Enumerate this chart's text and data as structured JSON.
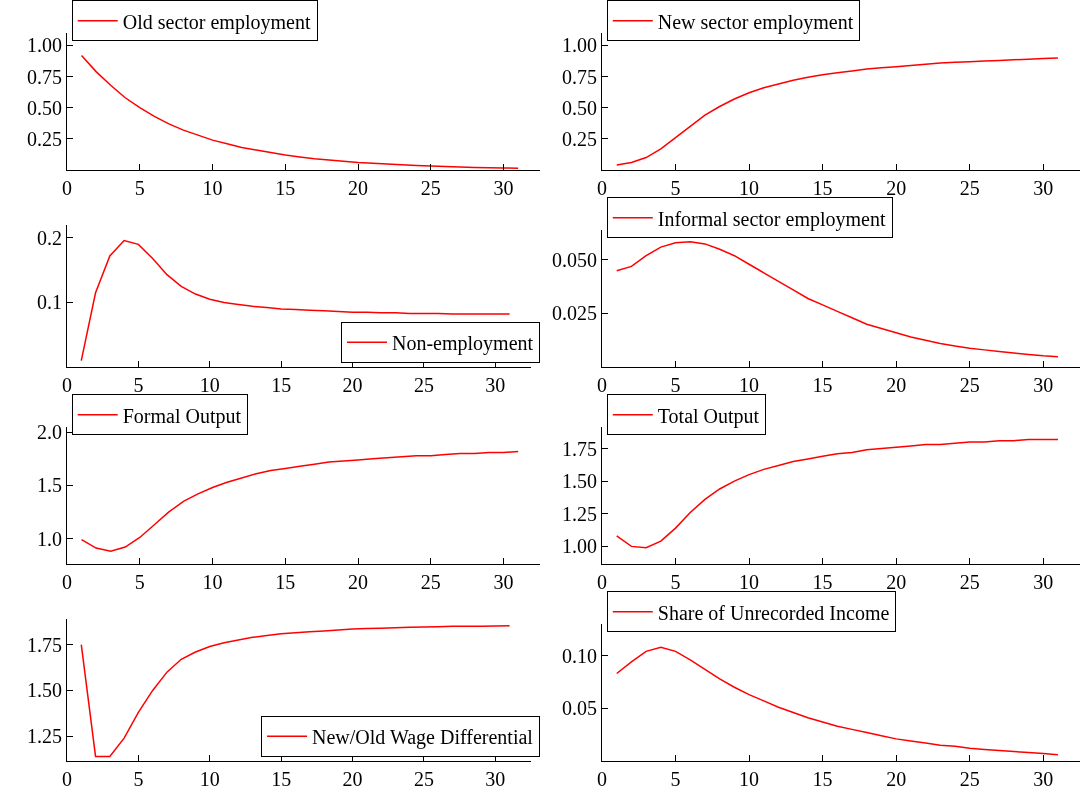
{
  "chart_data": [
    {
      "type": "line",
      "x": [
        1,
        2,
        3,
        4,
        5,
        6,
        7,
        8,
        9,
        10,
        11,
        12,
        13,
        14,
        15,
        16,
        17,
        18,
        19,
        20,
        21,
        22,
        23,
        24,
        25,
        26,
        27,
        28,
        29,
        30,
        31
      ],
      "xlim": [
        0,
        32.5
      ],
      "xticks": [
        0,
        5,
        10,
        15,
        20,
        25,
        30
      ],
      "ylim": [
        0,
        1.1
      ],
      "yticks": [
        {
          "value": 0.25,
          "label": "0.25"
        },
        {
          "value": 0.5,
          "label": "0.50"
        },
        {
          "value": 0.75,
          "label": "0.75"
        },
        {
          "value": 1,
          "label": "1.00"
        }
      ],
      "legend": "top left",
      "series": [
        {
          "name": "Old sector employment",
          "color": "#ff0000",
          "values": [
            0.92,
            0.79,
            0.68,
            0.58,
            0.5,
            0.43,
            0.37,
            0.32,
            0.28,
            0.24,
            0.21,
            0.18,
            0.16,
            0.14,
            0.12,
            0.105,
            0.09,
            0.08,
            0.07,
            0.06,
            0.055,
            0.048,
            0.042,
            0.036,
            0.032,
            0.028,
            0.024,
            0.021,
            0.018,
            0.016,
            0.014
          ]
        }
      ]
    },
    {
      "type": "line",
      "x": [
        1,
        2,
        3,
        4,
        5,
        6,
        7,
        8,
        9,
        10,
        11,
        12,
        13,
        14,
        15,
        16,
        17,
        18,
        19,
        20,
        21,
        22,
        23,
        24,
        25,
        26,
        27,
        28,
        29,
        30,
        31
      ],
      "xlim": [
        0,
        32.5
      ],
      "xticks": [
        0,
        5,
        10,
        15,
        20,
        25,
        30
      ],
      "ylim": [
        0,
        1.1
      ],
      "yticks": [
        {
          "value": 0.25,
          "label": "0.25"
        },
        {
          "value": 0.5,
          "label": "0.50"
        },
        {
          "value": 0.75,
          "label": "0.75"
        },
        {
          "value": 1,
          "label": "1.00"
        }
      ],
      "legend": "top left",
      "series": [
        {
          "name": "New sector employment",
          "color": "#ff0000",
          "values": [
            0.04,
            0.06,
            0.1,
            0.17,
            0.26,
            0.35,
            0.44,
            0.51,
            0.57,
            0.62,
            0.66,
            0.69,
            0.72,
            0.745,
            0.765,
            0.78,
            0.795,
            0.81,
            0.82,
            0.83,
            0.84,
            0.85,
            0.86,
            0.865,
            0.87,
            0.875,
            0.88,
            0.885,
            0.89,
            0.895,
            0.9
          ]
        }
      ]
    },
    {
      "type": "line",
      "x": [
        1,
        2,
        3,
        4,
        5,
        6,
        7,
        8,
        9,
        10,
        11,
        12,
        13,
        14,
        15,
        16,
        17,
        18,
        19,
        20,
        21,
        22,
        23,
        24,
        25,
        26,
        27,
        28,
        29,
        30,
        31
      ],
      "xlim": [
        0,
        32.5
      ],
      "xticks": [
        0,
        5,
        10,
        15,
        20,
        25,
        30
      ],
      "ylim": [
        0,
        0.22
      ],
      "yticks": [
        0.1,
        0.2
      ],
      "legend": "bottom right",
      "series": [
        {
          "name": "Non-employment",
          "color": "#ff0000",
          "values": [
            0.01,
            0.115,
            0.172,
            0.196,
            0.19,
            0.168,
            0.143,
            0.125,
            0.113,
            0.105,
            0.1,
            0.097,
            0.094,
            0.092,
            0.09,
            0.089,
            0.088,
            0.087,
            0.086,
            0.085,
            0.085,
            0.084,
            0.084,
            0.083,
            0.083,
            0.083,
            0.082,
            0.082,
            0.082,
            0.082,
            0.082
          ]
        }
      ]
    },
    {
      "type": "line",
      "x": [
        1,
        2,
        3,
        4,
        5,
        6,
        7,
        8,
        9,
        10,
        11,
        12,
        13,
        14,
        15,
        16,
        17,
        18,
        19,
        20,
        21,
        22,
        23,
        24,
        25,
        26,
        27,
        28,
        29,
        30,
        31
      ],
      "xlim": [
        0,
        32.5
      ],
      "xticks": [
        0,
        5,
        10,
        15,
        20,
        25,
        30
      ],
      "ylim": [
        0,
        0.064
      ],
      "yticks": [
        {
          "value": 0.025,
          "label": "0.025"
        },
        {
          "value": 0.05,
          "label": "0.050"
        }
      ],
      "legend": "top left",
      "series": [
        {
          "name": "Informal sector employment",
          "color": "#ff0000",
          "values": [
            0.045,
            0.047,
            0.052,
            0.056,
            0.058,
            0.0585,
            0.0575,
            0.055,
            0.052,
            0.048,
            0.044,
            0.04,
            0.036,
            0.032,
            0.029,
            0.026,
            0.023,
            0.02,
            0.018,
            0.016,
            0.014,
            0.0125,
            0.011,
            0.0098,
            0.0088,
            0.008,
            0.0072,
            0.0065,
            0.0058,
            0.0052,
            0.0048
          ]
        }
      ]
    },
    {
      "type": "line",
      "x": [
        1,
        2,
        3,
        4,
        5,
        6,
        7,
        8,
        9,
        10,
        11,
        12,
        13,
        14,
        15,
        16,
        17,
        18,
        19,
        20,
        21,
        22,
        23,
        24,
        25,
        26,
        27,
        28,
        29,
        30,
        31
      ],
      "xlim": [
        0,
        32.5
      ],
      "xticks": [
        0,
        5,
        10,
        15,
        20,
        25,
        30
      ],
      "ylim": [
        0.76,
        2.05
      ],
      "yticks": [
        {
          "value": 1,
          "label": "1.0"
        },
        1.5,
        {
          "value": 2,
          "label": "2.0"
        }
      ],
      "legend": "top left",
      "series": [
        {
          "name": "Formal Output",
          "color": "#ff0000",
          "values": [
            0.99,
            0.91,
            0.88,
            0.92,
            1.01,
            1.13,
            1.25,
            1.35,
            1.42,
            1.48,
            1.53,
            1.57,
            1.61,
            1.64,
            1.66,
            1.68,
            1.7,
            1.72,
            1.73,
            1.74,
            1.75,
            1.76,
            1.77,
            1.78,
            1.78,
            1.79,
            1.8,
            1.8,
            1.81,
            1.81,
            1.82
          ]
        }
      ]
    },
    {
      "type": "line",
      "x": [
        1,
        2,
        3,
        4,
        5,
        6,
        7,
        8,
        9,
        10,
        11,
        12,
        13,
        14,
        15,
        16,
        17,
        18,
        19,
        20,
        21,
        22,
        23,
        24,
        25,
        26,
        27,
        28,
        29,
        30,
        31
      ],
      "xlim": [
        0,
        32.5
      ],
      "xticks": [
        0,
        5,
        10,
        15,
        20,
        25,
        30
      ],
      "ylim": [
        0.865,
        1.915
      ],
      "yticks": [
        {
          "value": 1,
          "label": "1.00"
        },
        1.25,
        {
          "value": 1.5,
          "label": "1.50"
        },
        1.75
      ],
      "legend": "top left",
      "series": [
        {
          "name": "Total Output",
          "color": "#ff0000",
          "values": [
            1.08,
            1.0,
            0.99,
            1.04,
            1.14,
            1.26,
            1.36,
            1.44,
            1.5,
            1.55,
            1.59,
            1.62,
            1.65,
            1.67,
            1.69,
            1.71,
            1.72,
            1.74,
            1.75,
            1.76,
            1.77,
            1.78,
            1.78,
            1.79,
            1.8,
            1.8,
            1.81,
            1.81,
            1.82,
            1.82,
            1.82
          ]
        }
      ]
    },
    {
      "type": "line",
      "x": [
        1,
        2,
        3,
        4,
        5,
        6,
        7,
        8,
        9,
        10,
        11,
        12,
        13,
        14,
        15,
        16,
        17,
        18,
        19,
        20,
        21,
        22,
        23,
        24,
        25,
        26,
        27,
        28,
        29,
        30,
        31
      ],
      "xlim": [
        0,
        32.5
      ],
      "xticks": [
        0,
        5,
        10,
        15,
        20,
        25,
        30
      ],
      "ylim": [
        1.115,
        1.89
      ],
      "yticks": [
        1.25,
        {
          "value": 1.5,
          "label": "1.50"
        },
        1.75
      ],
      "legend": "bottom right",
      "series": [
        {
          "name": "New/Old Wage Differential",
          "color": "#ff0000",
          "values": [
            1.75,
            1.14,
            1.14,
            1.24,
            1.38,
            1.5,
            1.6,
            1.67,
            1.71,
            1.74,
            1.76,
            1.775,
            1.79,
            1.8,
            1.81,
            1.815,
            1.82,
            1.825,
            1.83,
            1.835,
            1.838,
            1.84,
            1.842,
            1.845,
            1.847,
            1.848,
            1.85,
            1.85,
            1.851,
            1.852,
            1.853
          ]
        }
      ]
    },
    {
      "type": "line",
      "x": [
        1,
        2,
        3,
        4,
        5,
        6,
        7,
        8,
        9,
        10,
        11,
        12,
        13,
        14,
        15,
        16,
        17,
        18,
        19,
        20,
        21,
        22,
        23,
        24,
        25,
        26,
        27,
        28,
        29,
        30,
        31
      ],
      "xlim": [
        0,
        32.5
      ],
      "xticks": [
        0,
        5,
        10,
        15,
        20,
        25,
        30
      ],
      "ylim": [
        0,
        0.13
      ],
      "yticks": [
        0.05,
        {
          "value": 0.1,
          "label": "0.10"
        }
      ],
      "legend": "top left",
      "series": [
        {
          "name": "Share of Unrecorded Income",
          "color": "#ff0000",
          "values": [
            0.083,
            0.094,
            0.104,
            0.108,
            0.104,
            0.096,
            0.087,
            0.078,
            0.07,
            0.063,
            0.057,
            0.051,
            0.046,
            0.041,
            0.037,
            0.033,
            0.03,
            0.027,
            0.024,
            0.021,
            0.019,
            0.017,
            0.015,
            0.014,
            0.012,
            0.011,
            0.01,
            0.009,
            0.008,
            0.007,
            0.006
          ]
        }
      ]
    }
  ]
}
